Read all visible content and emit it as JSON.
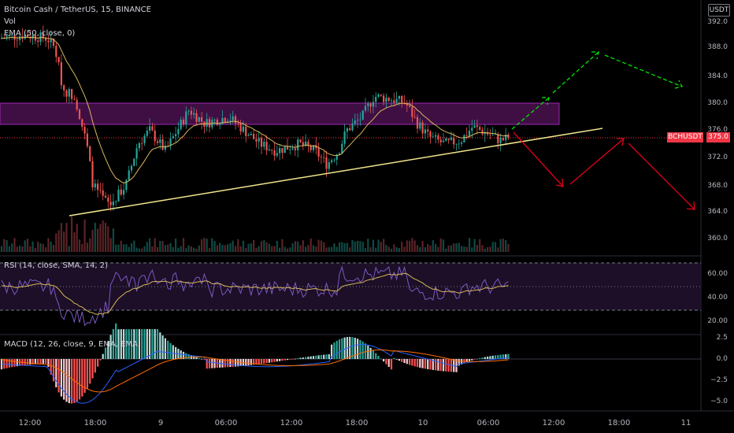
{
  "header": {
    "symbol_line": "Bitcoin Cash / TetherUS, 15, BINANCE",
    "vol_label": "Vol",
    "ema_label": "EMA (50, close, 0)"
  },
  "currency": "USDT",
  "price_axis": [
    "392.0",
    "388.0",
    "384.0",
    "380.0",
    "376.0",
    "372.0",
    "368.0",
    "364.0",
    "360.0"
  ],
  "last_price": {
    "symbol": "BCHUSDT",
    "value": "375.0"
  },
  "rsi": {
    "label": "RSI (14, close, SMA, 14, 2)",
    "axis": [
      "60.00",
      "40.00",
      "20.00"
    ]
  },
  "macd": {
    "label": "MACD (12, 26, close, 9, EMA, EMA)",
    "axis": [
      "2.5",
      "0.0",
      "−2.5",
      "−5.0"
    ]
  },
  "time_axis": [
    "12:00",
    "18:00",
    "9",
    "06:00",
    "12:00",
    "18:00",
    "10",
    "06:00",
    "12:00",
    "18:00",
    "11"
  ],
  "colors": {
    "up": "#26a69a",
    "down": "#ef5350",
    "ema": "#d7b75a",
    "zone": "#9c27b0",
    "trendline": "#f0e68c",
    "bull_arrow": "#00e600",
    "bear_arrow": "#e0001b"
  }
}
